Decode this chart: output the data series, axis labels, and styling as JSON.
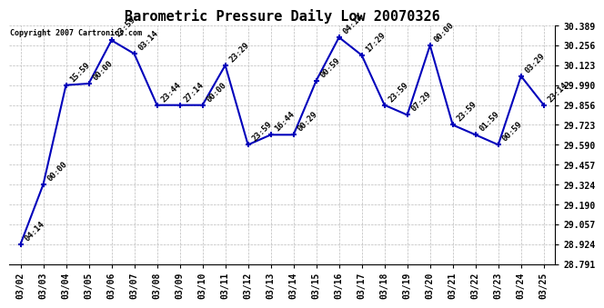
{
  "title": "Barometric Pressure Daily Low 20070326",
  "copyright": "Copyright 2007 Cartronics.com",
  "x_labels": [
    "03/02",
    "03/03",
    "03/04",
    "03/05",
    "03/06",
    "03/07",
    "03/08",
    "03/09",
    "03/10",
    "03/11",
    "03/12",
    "03/13",
    "03/14",
    "03/15",
    "03/16",
    "03/17",
    "03/18",
    "03/19",
    "03/20",
    "03/21",
    "03/22",
    "03/23",
    "03/24",
    "03/25"
  ],
  "y_values": [
    28.924,
    29.324,
    29.99,
    30.0,
    30.29,
    30.2,
    29.856,
    29.856,
    29.856,
    30.123,
    29.59,
    29.657,
    29.657,
    30.02,
    30.31,
    30.19,
    29.856,
    29.79,
    30.256,
    29.723,
    29.657,
    29.59,
    30.05,
    29.856
  ],
  "point_labels": [
    "04:14",
    "00:00",
    "15:59",
    "00:00",
    "23:59",
    "03:14",
    "23:44",
    "27:14",
    "00:00",
    "23:29",
    "23:59",
    "16:44",
    "00:29",
    "00:59",
    "04:14",
    "17:29",
    "23:59",
    "07:29",
    "00:00",
    "23:59",
    "01:59",
    "00:59",
    "03:29",
    "23:14"
  ],
  "y_min": 28.791,
  "y_max": 30.389,
  "y_ticks": [
    28.791,
    28.924,
    29.057,
    29.19,
    29.324,
    29.457,
    29.59,
    29.723,
    29.856,
    29.99,
    30.123,
    30.256,
    30.389
  ],
  "line_color": "#0000BB",
  "marker_color": "#0000BB",
  "background_color": "#ffffff",
  "grid_color": "#bbbbbb",
  "title_fontsize": 11,
  "label_fontsize": 6.5,
  "tick_fontsize": 7
}
